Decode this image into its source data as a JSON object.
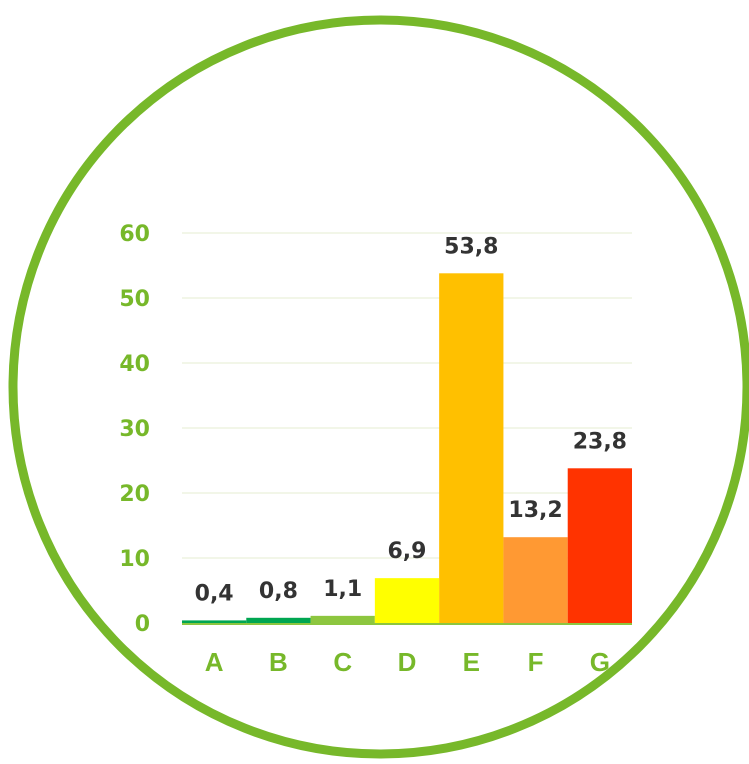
{
  "chart_data": {
    "type": "bar",
    "title": "",
    "xlabel": "",
    "ylabel": "",
    "categories": [
      "A",
      "B",
      "C",
      "D",
      "E",
      "F",
      "G"
    ],
    "values": [
      0.4,
      0.8,
      1.1,
      6.9,
      53.8,
      13.2,
      23.8
    ],
    "data_labels": [
      "0,4",
      "0,8",
      "1,1",
      "6,9",
      "53,8",
      "13,2",
      "23,8"
    ],
    "bar_colors": [
      "#00a651",
      "#00a651",
      "#8dc63f",
      "#ffff00",
      "#ffc000",
      "#ff9933",
      "#ff3300"
    ],
    "ylim": [
      0,
      60
    ],
    "yticks": [
      0,
      10,
      20,
      30,
      40,
      50,
      60
    ],
    "ytick_labels": [
      "0",
      "10",
      "20",
      "30",
      "40",
      "50",
      "60"
    ],
    "grid": true,
    "legend": "none"
  },
  "style": {
    "frame_ring": "circle",
    "ring_color": "#77b82a",
    "tick_color": "#77b82a",
    "label_color": "#333333",
    "grid_color": "#e6ecd2",
    "axis_color": "#8cc63f"
  }
}
